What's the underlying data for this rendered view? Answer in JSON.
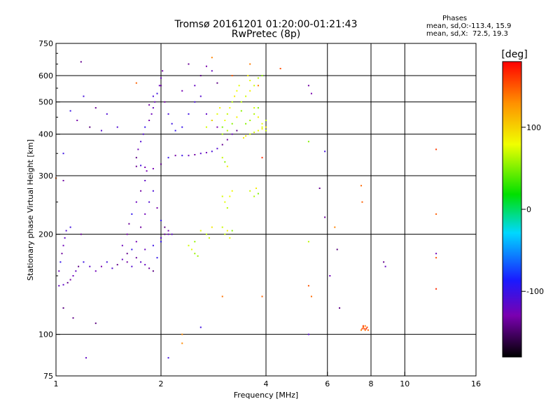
{
  "chart_data": {
    "type": "scatter",
    "title": "Tromsø 20161201 01:20:00-01:21:43",
    "subtitle": "RwPretec (8p)",
    "xlabel": "Frequency [MHz]",
    "ylabel": "Stationary phase Virtual Height [km]",
    "x_scale": "log",
    "y_scale": "log",
    "xlim": [
      1,
      16
    ],
    "ylim": [
      75,
      750
    ],
    "x_ticks": [
      1,
      2,
      4,
      6,
      8,
      10,
      16
    ],
    "x_tick_labels": [
      "1",
      "2",
      "4",
      "6",
      "8",
      "10",
      "16"
    ],
    "y_ticks": [
      75,
      100,
      200,
      300,
      400,
      500,
      600,
      750
    ],
    "y_tick_labels": [
      "75",
      "100",
      "200",
      "300",
      "400",
      "500",
      "600",
      "750"
    ],
    "x_gridlines": [
      2,
      4,
      6,
      8,
      10
    ],
    "y_gridlines": [
      100,
      200,
      300,
      400,
      500,
      600
    ],
    "grid": true,
    "stats_header": "Phases",
    "stats_lines": [
      "mean, sd,O:-113.4, 15.9",
      "mean, sd,X:  72.5, 19.3"
    ],
    "colorbar": {
      "label": "[deg]",
      "range": [
        -180,
        180
      ],
      "ticks": [
        -100,
        0,
        100
      ],
      "tick_labels": [
        "-100",
        "0",
        "100"
      ]
    },
    "series": [
      {
        "mode": "O",
        "phase_deg": -120,
        "points": [
          [
            1.02,
            140
          ],
          [
            1.05,
            141
          ],
          [
            1.08,
            143
          ],
          [
            1.1,
            146
          ],
          [
            1.12,
            150
          ],
          [
            1.14,
            155
          ],
          [
            1.16,
            160
          ],
          [
            1.2,
            165
          ],
          [
            1.25,
            160
          ],
          [
            1.3,
            155
          ],
          [
            1.35,
            160
          ],
          [
            1.4,
            165
          ],
          [
            1.45,
            158
          ],
          [
            1.5,
            162
          ],
          [
            1.55,
            168
          ],
          [
            1.6,
            165
          ],
          [
            1.65,
            160
          ],
          [
            1.7,
            170
          ],
          [
            1.75,
            165
          ],
          [
            1.8,
            162
          ],
          [
            1.85,
            158
          ],
          [
            1.9,
            155
          ],
          [
            1.95,
            170
          ],
          [
            2.0,
            190
          ],
          [
            2.05,
            200
          ],
          [
            1.02,
            155
          ],
          [
            1.03,
            165
          ],
          [
            1.04,
            175
          ],
          [
            1.05,
            185
          ],
          [
            1.06,
            195
          ],
          [
            1.07,
            205
          ],
          [
            1.6,
            200
          ],
          [
            1.62,
            215
          ],
          [
            1.65,
            230
          ],
          [
            1.7,
            250
          ],
          [
            1.75,
            270
          ],
          [
            1.8,
            290
          ],
          [
            1.82,
            310
          ],
          [
            1.7,
            320
          ],
          [
            1.75,
            322
          ],
          [
            1.8,
            318
          ],
          [
            1.9,
            315
          ],
          [
            2.0,
            325
          ],
          [
            2.1,
            340
          ],
          [
            2.2,
            345
          ],
          [
            2.3,
            345
          ],
          [
            2.4,
            345
          ],
          [
            2.5,
            347
          ],
          [
            2.6,
            350
          ],
          [
            2.7,
            352
          ],
          [
            2.8,
            355
          ],
          [
            2.9,
            362
          ],
          [
            3.0,
            372
          ],
          [
            3.1,
            385
          ],
          [
            3.2,
            400
          ],
          [
            3.3,
            410
          ],
          [
            1.7,
            340
          ],
          [
            1.72,
            360
          ],
          [
            1.75,
            380
          ],
          [
            1.78,
            400
          ],
          [
            1.8,
            420
          ],
          [
            1.85,
            440
          ],
          [
            1.88,
            460
          ],
          [
            1.9,
            480
          ],
          [
            1.92,
            500
          ],
          [
            1.95,
            530
          ],
          [
            1.98,
            560
          ],
          [
            2.0,
            590
          ],
          [
            2.02,
            620
          ],
          [
            1.85,
            490
          ],
          [
            1.9,
            520
          ],
          [
            2.0,
            560
          ],
          [
            2.05,
            500
          ],
          [
            2.1,
            460
          ],
          [
            2.15,
            430
          ],
          [
            2.2,
            410
          ],
          [
            2.3,
            420
          ],
          [
            2.4,
            460
          ],
          [
            2.5,
            500
          ],
          [
            2.6,
            520
          ],
          [
            2.7,
            460
          ],
          [
            2.8,
            440
          ],
          [
            2.9,
            420
          ],
          [
            1.7,
            190
          ],
          [
            1.75,
            210
          ],
          [
            1.8,
            230
          ],
          [
            1.85,
            250
          ],
          [
            1.9,
            270
          ],
          [
            1.95,
            240
          ],
          [
            2.0,
            220
          ],
          [
            2.05,
            210
          ],
          [
            2.1,
            205
          ],
          [
            2.15,
            200
          ],
          [
            1.55,
            185
          ],
          [
            1.6,
            175
          ],
          [
            1.65,
            180
          ],
          [
            1.8,
            180
          ],
          [
            1.9,
            185
          ],
          [
            2.0,
            195
          ],
          [
            2.1,
            200
          ],
          [
            1.18,
            660
          ],
          [
            1.2,
            520
          ],
          [
            1.1,
            470
          ],
          [
            1.15,
            440
          ],
          [
            1.25,
            420
          ],
          [
            1.3,
            480
          ],
          [
            1.4,
            460
          ],
          [
            1.5,
            420
          ],
          [
            1.35,
            410
          ],
          [
            1.05,
            350
          ],
          [
            1.05,
            290
          ],
          [
            1.1,
            210
          ],
          [
            1.18,
            200
          ],
          [
            1.05,
            120
          ],
          [
            1.12,
            112
          ],
          [
            1.3,
            108
          ],
          [
            1.22,
            85
          ],
          [
            2.1,
            85
          ],
          [
            2.6,
            105
          ],
          [
            2.4,
            650
          ],
          [
            2.5,
            560
          ],
          [
            2.6,
            600
          ],
          [
            2.7,
            640
          ],
          [
            2.8,
            620
          ],
          [
            2.9,
            570
          ],
          [
            2.3,
            540
          ],
          [
            5.3,
            560
          ],
          [
            5.4,
            530
          ],
          [
            5.9,
            355
          ],
          [
            5.7,
            275
          ],
          [
            5.9,
            225
          ],
          [
            6.4,
            180
          ],
          [
            5.3,
            100
          ],
          [
            6.5,
            120
          ],
          [
            6.1,
            150
          ],
          [
            8.7,
            165
          ],
          [
            8.8,
            160
          ],
          [
            12.3,
            175
          ]
        ]
      },
      {
        "mode": "X",
        "phase_deg": 70,
        "points": [
          [
            3.0,
            420
          ],
          [
            3.05,
            440
          ],
          [
            3.1,
            460
          ],
          [
            3.15,
            480
          ],
          [
            3.2,
            500
          ],
          [
            3.25,
            520
          ],
          [
            3.3,
            540
          ],
          [
            3.35,
            560
          ],
          [
            3.0,
            400
          ],
          [
            3.1,
            410
          ],
          [
            3.2,
            430
          ],
          [
            3.3,
            450
          ],
          [
            3.4,
            470
          ],
          [
            3.5,
            430
          ],
          [
            3.6,
            440
          ],
          [
            3.7,
            460
          ],
          [
            3.8,
            480
          ],
          [
            3.9,
            420
          ],
          [
            4.0,
            440
          ],
          [
            3.4,
            500
          ],
          [
            3.5,
            520
          ],
          [
            3.6,
            540
          ],
          [
            3.7,
            560
          ],
          [
            3.8,
            590
          ],
          [
            3.9,
            600
          ],
          [
            3.55,
            600
          ],
          [
            3.6,
            580
          ],
          [
            3.7,
            480
          ],
          [
            3.8,
            450
          ],
          [
            3.9,
            430
          ],
          [
            4.0,
            410
          ],
          [
            3.45,
            390
          ],
          [
            3.5,
            395
          ],
          [
            3.6,
            400
          ],
          [
            3.7,
            405
          ],
          [
            3.8,
            410
          ],
          [
            3.9,
            415
          ],
          [
            4.0,
            420
          ],
          [
            2.7,
            420
          ],
          [
            2.8,
            440
          ],
          [
            2.9,
            460
          ],
          [
            2.95,
            480
          ],
          [
            3.0,
            340
          ],
          [
            3.05,
            330
          ],
          [
            3.1,
            320
          ],
          [
            3.0,
            260
          ],
          [
            3.05,
            250
          ],
          [
            3.1,
            240
          ],
          [
            3.15,
            260
          ],
          [
            3.2,
            270
          ],
          [
            3.0,
            210
          ],
          [
            3.05,
            200
          ],
          [
            3.1,
            205
          ],
          [
            3.15,
            195
          ],
          [
            3.2,
            205
          ],
          [
            2.7,
            200
          ],
          [
            2.75,
            195
          ],
          [
            2.8,
            210
          ],
          [
            2.6,
            205
          ],
          [
            2.5,
            190
          ],
          [
            2.45,
            180
          ],
          [
            2.5,
            175
          ],
          [
            2.55,
            172
          ],
          [
            2.4,
            185
          ],
          [
            3.7,
            260
          ],
          [
            3.8,
            265
          ],
          [
            3.75,
            275
          ],
          [
            3.6,
            270
          ],
          [
            5.3,
            380
          ],
          [
            5.3,
            190
          ]
        ]
      },
      {
        "mode": "other",
        "phase_deg": 150,
        "points": [
          [
            7.5,
            103
          ],
          [
            7.55,
            104
          ],
          [
            7.6,
            105
          ],
          [
            7.65,
            104
          ],
          [
            7.7,
            103
          ],
          [
            7.75,
            104
          ],
          [
            7.8,
            105
          ],
          [
            7.85,
            103
          ],
          [
            7.6,
            106
          ],
          [
            7.7,
            106
          ],
          [
            7.5,
            280
          ],
          [
            7.55,
            250
          ],
          [
            3.9,
            340
          ],
          [
            4.4,
            630
          ],
          [
            2.8,
            680
          ],
          [
            3.6,
            650
          ],
          [
            3.2,
            600
          ],
          [
            3.0,
            130
          ],
          [
            3.9,
            130
          ],
          [
            5.3,
            140
          ],
          [
            5.4,
            130
          ],
          [
            2.3,
            100
          ],
          [
            2.3,
            94
          ],
          [
            12.3,
            360
          ],
          [
            12.3,
            230
          ],
          [
            12.3,
            170
          ],
          [
            12.3,
            137
          ],
          [
            6.3,
            210
          ],
          [
            1.7,
            570
          ],
          [
            3.8,
            560
          ],
          [
            1.0,
            295
          ]
        ]
      }
    ]
  }
}
